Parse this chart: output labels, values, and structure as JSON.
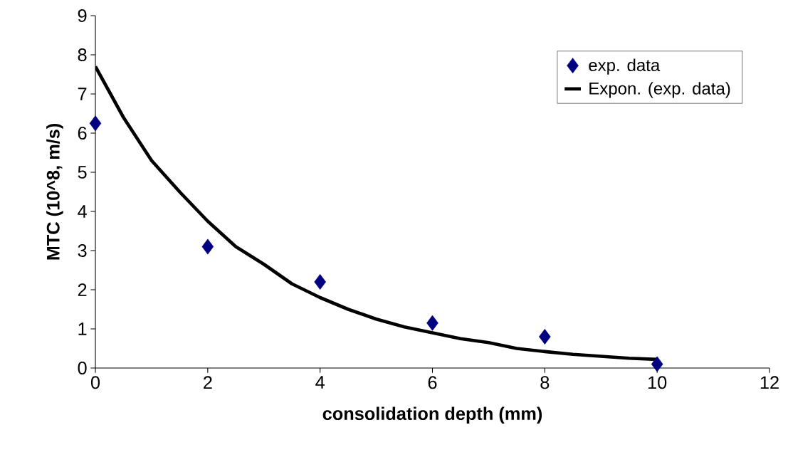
{
  "chart_data": {
    "type": "scatter",
    "xlabel": "consolidation depth (mm)",
    "ylabel": "MTC (10^8, m/s)",
    "xlim": [
      0,
      12
    ],
    "ylim": [
      0,
      9
    ],
    "xticks": [
      0,
      2,
      4,
      6,
      8,
      10,
      12
    ],
    "yticks": [
      0,
      1,
      2,
      3,
      4,
      5,
      6,
      7,
      8,
      9
    ],
    "legend": "top right",
    "grid": false,
    "series": [
      {
        "name": "exp. data",
        "marker": "diamond",
        "color": "#000080",
        "x": [
          0,
          2,
          4,
          6,
          8,
          10
        ],
        "values": [
          6.25,
          3.1,
          2.2,
          1.15,
          0.8,
          0.1
        ]
      },
      {
        "name": "Expon. (exp. data)",
        "type": "line",
        "marker": "none",
        "line_style": "solid",
        "color": "#000000",
        "x": [
          0,
          0.5,
          1,
          1.5,
          2,
          2.5,
          3,
          3.5,
          4,
          4.5,
          5,
          5.5,
          6,
          6.5,
          7,
          7.5,
          8,
          8.5,
          9,
          9.5,
          10
        ],
        "values": [
          7.7,
          6.4,
          5.3,
          4.5,
          3.75,
          3.1,
          2.65,
          2.15,
          1.8,
          1.5,
          1.25,
          1.05,
          0.9,
          0.75,
          0.65,
          0.5,
          0.42,
          0.35,
          0.3,
          0.25,
          0.22
        ]
      }
    ]
  }
}
